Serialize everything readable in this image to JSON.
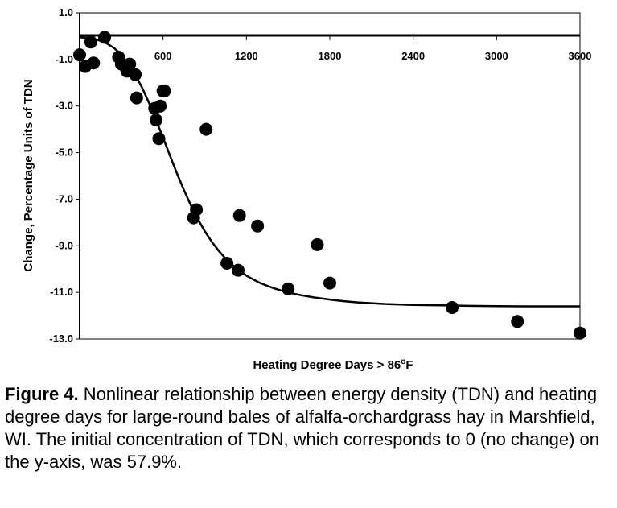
{
  "chart_data": {
    "type": "scatter",
    "xlabel_main": "Heating Degree Days > 86",
    "xlabel_sup": "o",
    "xlabel_unit": "F",
    "ylabel": "Change, Percentage Units of TDN",
    "xlim": [
      0,
      3600
    ],
    "ylim": [
      -13,
      1
    ],
    "x_ticks": [
      "600",
      "1200",
      "1800",
      "2400",
      "3000",
      "3600"
    ],
    "y_ticks": [
      "1.0",
      "-1.0",
      "-3.0",
      "-5.0",
      "-7.0",
      "-9.0",
      "-11.0",
      "-13.0"
    ],
    "points": [
      {
        "x": 0,
        "y": -0.8
      },
      {
        "x": 40,
        "y": -1.3
      },
      {
        "x": 80,
        "y": -0.25
      },
      {
        "x": 100,
        "y": -1.15
      },
      {
        "x": 180,
        "y": -0.05
      },
      {
        "x": 280,
        "y": -0.9
      },
      {
        "x": 300,
        "y": -1.2
      },
      {
        "x": 340,
        "y": -1.5
      },
      {
        "x": 360,
        "y": -1.2
      },
      {
        "x": 400,
        "y": -1.65
      },
      {
        "x": 410,
        "y": -2.65
      },
      {
        "x": 540,
        "y": -3.1
      },
      {
        "x": 550,
        "y": -3.6
      },
      {
        "x": 570,
        "y": -4.4
      },
      {
        "x": 580,
        "y": -3.0
      },
      {
        "x": 600,
        "y": -2.35
      },
      {
        "x": 610,
        "y": -2.35
      },
      {
        "x": 820,
        "y": -7.8
      },
      {
        "x": 840,
        "y": -7.45
      },
      {
        "x": 910,
        "y": -4.0
      },
      {
        "x": 1060,
        "y": -9.75
      },
      {
        "x": 1140,
        "y": -10.05
      },
      {
        "x": 1150,
        "y": -7.7
      },
      {
        "x": 1280,
        "y": -8.15
      },
      {
        "x": 1500,
        "y": -10.85
      },
      {
        "x": 1710,
        "y": -8.95
      },
      {
        "x": 1800,
        "y": -10.6
      },
      {
        "x": 2680,
        "y": -11.65
      },
      {
        "x": 3150,
        "y": -12.25
      },
      {
        "x": 3600,
        "y": -12.75
      }
    ],
    "fit_curve": {
      "x": [
        0,
        50,
        100,
        150,
        200,
        250,
        300,
        350,
        400,
        450,
        500,
        550,
        600,
        650,
        700,
        750,
        800,
        850,
        900,
        950,
        1000,
        1050,
        1100,
        1150,
        1200,
        1250,
        1300,
        1350,
        1400,
        1450,
        1500,
        1550,
        1600,
        1700,
        1800,
        1900,
        2000,
        2200,
        2400,
        2600,
        2800,
        3000,
        3200,
        3400,
        3600
      ],
      "y": [
        -0.05,
        -0.07,
        -0.12,
        -0.2,
        -0.33,
        -0.52,
        -0.8,
        -1.18,
        -1.65,
        -2.22,
        -2.88,
        -3.6,
        -4.36,
        -5.13,
        -5.89,
        -6.6,
        -7.26,
        -7.85,
        -8.37,
        -8.82,
        -9.21,
        -9.55,
        -9.83,
        -10.07,
        -10.28,
        -10.45,
        -10.6,
        -10.72,
        -10.83,
        -10.92,
        -11.0,
        -11.07,
        -11.13,
        -11.23,
        -11.31,
        -11.38,
        -11.43,
        -11.5,
        -11.54,
        -11.56,
        -11.58,
        -11.59,
        -11.6,
        -11.6,
        -11.6
      ]
    }
  },
  "caption": {
    "label": "Figure 4.",
    "text": " Nonlinear relationship between energy density (TDN) and heating degree days for large-round bales of alfalfa-orchardgrass hay in Marshfield, WI. The initial concentration of TDN, which corresponds to 0 (no change) on the y-axis, was 57.9%."
  }
}
